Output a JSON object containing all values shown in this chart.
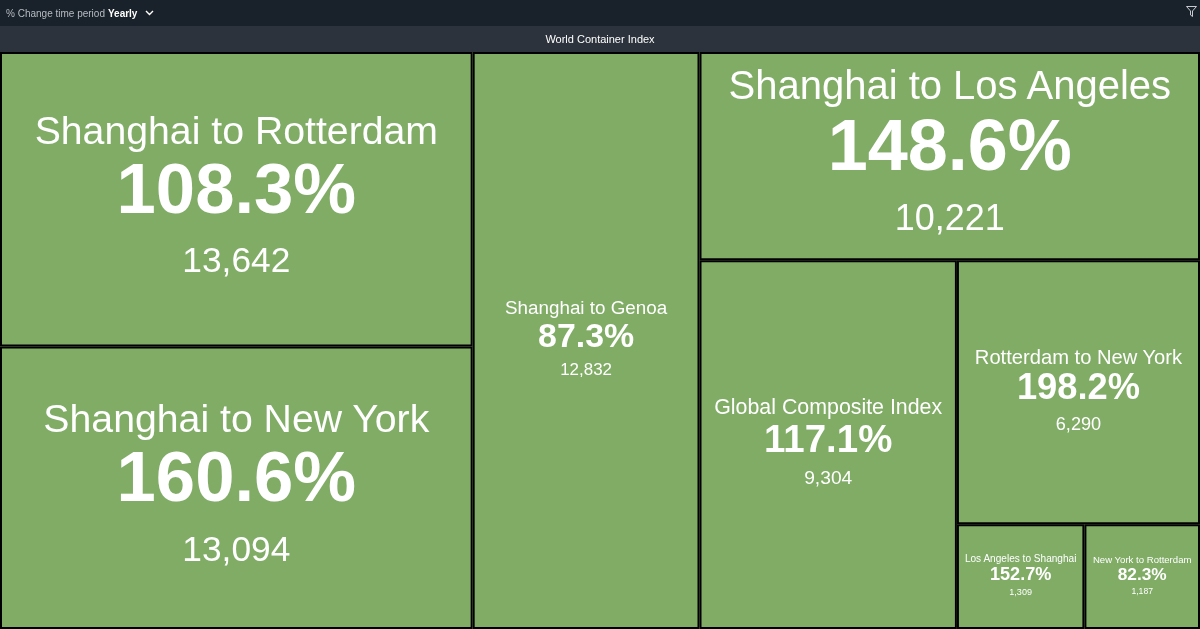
{
  "chart_data": {
    "type": "other",
    "title": "World Container Index",
    "annotations": [
      "% Change time period",
      "Yearly",
      {
        "text": "108.3%",
        "x": "Shanghai to Rotterdam"
      },
      {
        "text": "160.6%",
        "x": "Shanghai to New York"
      },
      {
        "text": "87.3%",
        "x": "Shanghai to Genoa"
      },
      {
        "text": "148.6%",
        "x": "Shanghai to Los Angeles"
      },
      {
        "text": "117.1%",
        "x": "Global Composite Index"
      },
      {
        "text": "198.2%",
        "x": "Rotterdam to New York"
      },
      {
        "text": "152.7%",
        "x": "Los Angeles to Shanghai"
      },
      {
        "text": "82.3%",
        "x": "New York to Rotterdam"
      }
    ],
    "categories": [
      "Shanghai to Rotterdam",
      "Shanghai to New York",
      "Shanghai to Genoa",
      "Shanghai to Los Angeles",
      "Global Composite Index",
      "Rotterdam to New York",
      "Los Angeles to Shanghai",
      "New York to Rotterdam"
    ],
    "values": [
      13642,
      13094,
      12832,
      10221,
      9304,
      6290,
      1309,
      1187
    ],
    "value_labels": [
      "13,642",
      "13,094",
      "12,832",
      "10,221",
      "9,304",
      "6,290",
      "1,309",
      "1,187"
    ],
    "color": "#80ac66"
  }
}
